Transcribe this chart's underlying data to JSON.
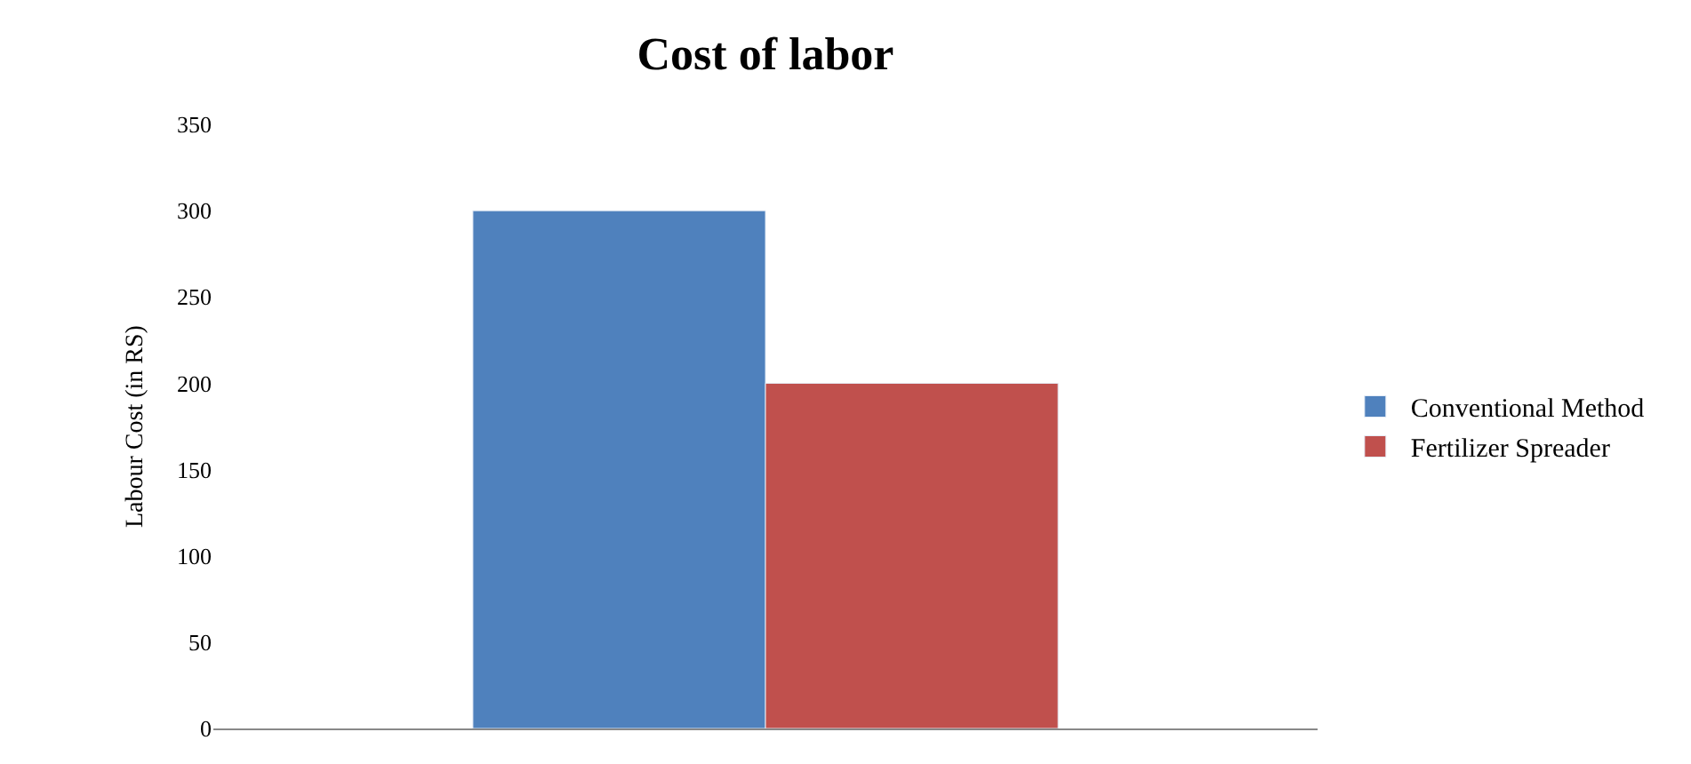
{
  "chart_data": {
    "type": "bar",
    "title": "Cost of labor",
    "ylabel": "Labour Cost (in RS)",
    "categories": [
      null
    ],
    "series": [
      {
        "name": "Conventional Method",
        "color": "#4f81bd",
        "values": [
          300
        ]
      },
      {
        "name": "Fertilizer Spreader",
        "color": "#c0504d",
        "values": [
          200
        ]
      }
    ],
    "ylim": [
      0,
      350
    ],
    "yticks": [
      0,
      50,
      100,
      150,
      200,
      250,
      300,
      350
    ],
    "grid": false,
    "legend": "right"
  }
}
